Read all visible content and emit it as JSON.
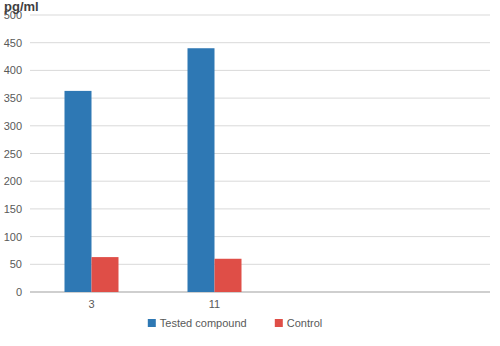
{
  "chart_data": {
    "type": "bar",
    "y_label": "pg/ml",
    "categories": [
      "3",
      "11"
    ],
    "series": [
      {
        "name": "Tested compound",
        "color": "#2e78b4",
        "values": [
          363,
          440
        ]
      },
      {
        "name": "Control",
        "color": "#df4e47",
        "values": [
          63,
          60
        ]
      }
    ],
    "ylim": [
      0,
      500
    ],
    "yticks": [
      0,
      50,
      100,
      150,
      200,
      250,
      300,
      350,
      400,
      450,
      500
    ],
    "grid": true,
    "legend": "bottom"
  }
}
